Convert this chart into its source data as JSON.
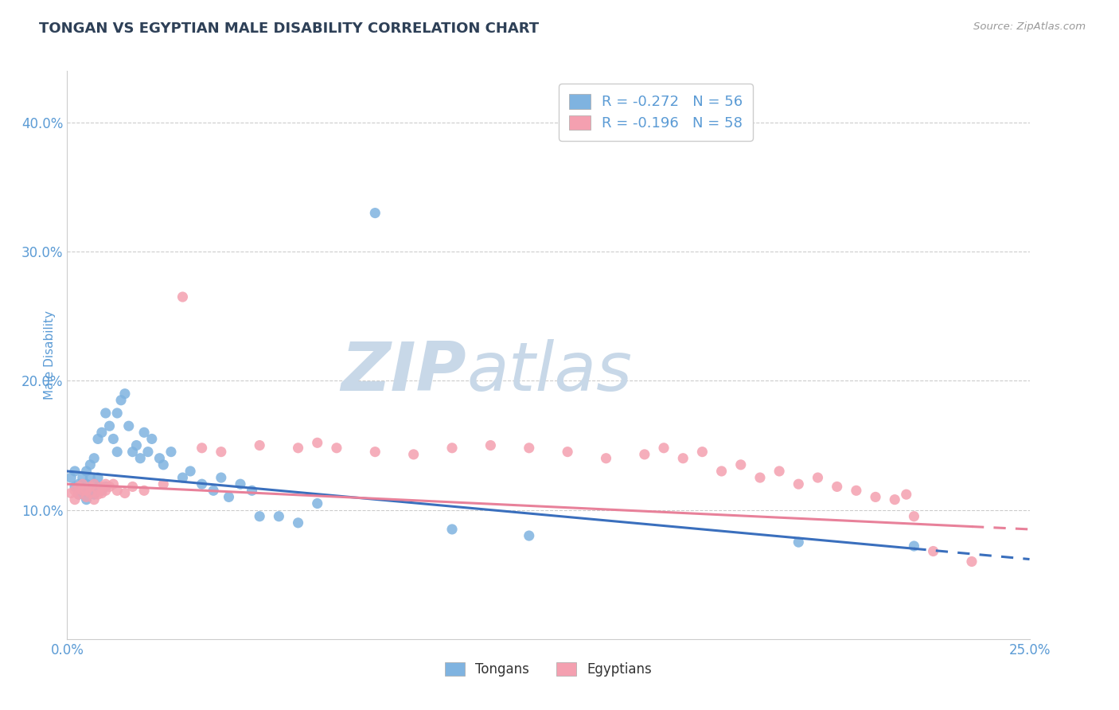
{
  "title": "TONGAN VS EGYPTIAN MALE DISABILITY CORRELATION CHART",
  "source": "Source: ZipAtlas.com",
  "ylabel": "Male Disability",
  "xlim": [
    0.0,
    0.25
  ],
  "ylim": [
    0.0,
    0.44
  ],
  "yticks": [
    0.1,
    0.2,
    0.3,
    0.4
  ],
  "ytick_labels": [
    "10.0%",
    "20.0%",
    "30.0%",
    "40.0%"
  ],
  "legend_tongan": "R = -0.272   N = 56",
  "legend_egyptian": "R = -0.196   N = 58",
  "color_tongan": "#7fb3e0",
  "color_egyptian": "#f4a0b0",
  "color_tongan_line": "#3a6fbd",
  "color_egyptian_line": "#e8819a",
  "tongan_scatter_x": [
    0.001,
    0.002,
    0.002,
    0.003,
    0.003,
    0.004,
    0.004,
    0.005,
    0.005,
    0.005,
    0.006,
    0.006,
    0.006,
    0.007,
    0.007,
    0.007,
    0.008,
    0.008,
    0.008,
    0.009,
    0.009,
    0.01,
    0.01,
    0.011,
    0.012,
    0.013,
    0.013,
    0.014,
    0.015,
    0.016,
    0.017,
    0.018,
    0.019,
    0.02,
    0.021,
    0.022,
    0.024,
    0.025,
    0.027,
    0.03,
    0.032,
    0.035,
    0.038,
    0.04,
    0.042,
    0.045,
    0.048,
    0.05,
    0.055,
    0.06,
    0.065,
    0.08,
    0.1,
    0.12,
    0.19,
    0.22
  ],
  "tongan_scatter_y": [
    0.125,
    0.118,
    0.13,
    0.112,
    0.12,
    0.115,
    0.125,
    0.108,
    0.12,
    0.13,
    0.115,
    0.125,
    0.135,
    0.112,
    0.12,
    0.14,
    0.118,
    0.125,
    0.155,
    0.115,
    0.16,
    0.118,
    0.175,
    0.165,
    0.155,
    0.145,
    0.175,
    0.185,
    0.19,
    0.165,
    0.145,
    0.15,
    0.14,
    0.16,
    0.145,
    0.155,
    0.14,
    0.135,
    0.145,
    0.125,
    0.13,
    0.12,
    0.115,
    0.125,
    0.11,
    0.12,
    0.115,
    0.095,
    0.095,
    0.09,
    0.105,
    0.33,
    0.085,
    0.08,
    0.075,
    0.072
  ],
  "egyptian_scatter_x": [
    0.001,
    0.002,
    0.002,
    0.003,
    0.003,
    0.004,
    0.004,
    0.005,
    0.005,
    0.006,
    0.006,
    0.007,
    0.007,
    0.008,
    0.008,
    0.009,
    0.009,
    0.01,
    0.01,
    0.011,
    0.012,
    0.013,
    0.015,
    0.017,
    0.02,
    0.025,
    0.03,
    0.035,
    0.04,
    0.05,
    0.06,
    0.065,
    0.07,
    0.08,
    0.09,
    0.1,
    0.11,
    0.12,
    0.13,
    0.14,
    0.15,
    0.155,
    0.16,
    0.165,
    0.17,
    0.175,
    0.18,
    0.185,
    0.19,
    0.195,
    0.2,
    0.205,
    0.21,
    0.215,
    0.218,
    0.22,
    0.225,
    0.235
  ],
  "egyptian_scatter_y": [
    0.113,
    0.115,
    0.108,
    0.118,
    0.112,
    0.115,
    0.12,
    0.11,
    0.115,
    0.118,
    0.113,
    0.108,
    0.12,
    0.115,
    0.112,
    0.118,
    0.113,
    0.12,
    0.115,
    0.118,
    0.12,
    0.115,
    0.113,
    0.118,
    0.115,
    0.12,
    0.265,
    0.148,
    0.145,
    0.15,
    0.148,
    0.152,
    0.148,
    0.145,
    0.143,
    0.148,
    0.15,
    0.148,
    0.145,
    0.14,
    0.143,
    0.148,
    0.14,
    0.145,
    0.13,
    0.135,
    0.125,
    0.13,
    0.12,
    0.125,
    0.118,
    0.115,
    0.11,
    0.108,
    0.112,
    0.095,
    0.068,
    0.06
  ],
  "background_color": "#ffffff",
  "grid_color": "#cccccc",
  "title_color": "#2E4057",
  "axis_label_color": "#5b9bd5",
  "watermark_zip": "ZIP",
  "watermark_atlas": "atlas",
  "watermark_color_zip": "#c8d8e8",
  "watermark_color_atlas": "#c8d8e8"
}
